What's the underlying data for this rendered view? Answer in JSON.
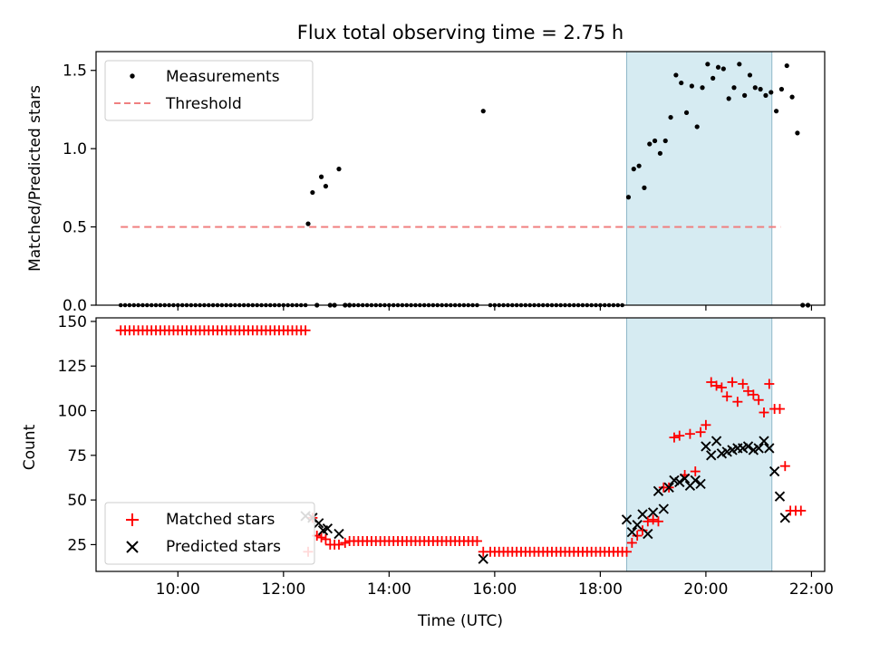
{
  "figure": {
    "title": "Flux total observing time = 2.75 h",
    "shared_xlabel": "Time (UTC)"
  },
  "colors": {
    "measurement": "#000000",
    "threshold": "#f08080",
    "matched": "#ff0000",
    "predicted": "#000000",
    "highlight": "#add8e6"
  },
  "chart_data": [
    {
      "type": "scatter",
      "title": "Flux total observing time = 2.75 h",
      "xlabel": "",
      "ylabel": "Matched/Predicted stars",
      "xlim": [
        "08:27",
        "22:15"
      ],
      "ylim": [
        0,
        1.62
      ],
      "yticks": [
        0.0,
        0.5,
        1.0,
        1.5
      ],
      "yticklabels": [
        "0.0",
        "0.5",
        "1.0",
        "1.5"
      ],
      "xticks": [
        "10:00",
        "12:00",
        "14:00",
        "16:00",
        "18:00",
        "20:00",
        "22:00"
      ],
      "shaded_span": [
        "18:30",
        "21:15"
      ],
      "legend": {
        "position": "upper-left",
        "entries": [
          "Measurements",
          "Threshold"
        ]
      },
      "threshold": {
        "name": "Threshold",
        "y": 0.5,
        "x": [
          "08:55",
          "21:25"
        ]
      },
      "series": [
        {
          "name": "Measurements",
          "marker": "dot",
          "zero_runs": [
            [
              "08:55",
              "12:25"
            ],
            [
              "13:20",
              "15:40"
            ],
            [
              "15:55",
              "18:25"
            ]
          ],
          "points": [
            [
              "12:28",
              0.52
            ],
            [
              "12:33",
              0.72
            ],
            [
              "12:38",
              0.0
            ],
            [
              "12:43",
              0.82
            ],
            [
              "12:48",
              0.76
            ],
            [
              "12:53",
              0.0
            ],
            [
              "12:58",
              0.0
            ],
            [
              "13:03",
              0.87
            ],
            [
              "13:10",
              0.0
            ],
            [
              "13:15",
              0.0
            ],
            [
              "15:47",
              1.24
            ],
            [
              "18:32",
              0.69
            ],
            [
              "18:38",
              0.87
            ],
            [
              "18:44",
              0.89
            ],
            [
              "18:50",
              0.75
            ],
            [
              "18:56",
              1.03
            ],
            [
              "19:02",
              1.05
            ],
            [
              "19:08",
              0.97
            ],
            [
              "19:14",
              1.05
            ],
            [
              "19:20",
              1.2
            ],
            [
              "19:26",
              1.47
            ],
            [
              "19:32",
              1.42
            ],
            [
              "19:38",
              1.23
            ],
            [
              "19:44",
              1.4
            ],
            [
              "19:50",
              1.14
            ],
            [
              "19:56",
              1.39
            ],
            [
              "20:02",
              1.54
            ],
            [
              "20:08",
              1.45
            ],
            [
              "20:14",
              1.52
            ],
            [
              "20:20",
              1.51
            ],
            [
              "20:26",
              1.32
            ],
            [
              "20:32",
              1.39
            ],
            [
              "20:38",
              1.54
            ],
            [
              "20:44",
              1.34
            ],
            [
              "20:50",
              1.47
            ],
            [
              "20:56",
              1.39
            ],
            [
              "21:02",
              1.38
            ],
            [
              "21:08",
              1.34
            ],
            [
              "21:14",
              1.36
            ],
            [
              "21:20",
              1.24
            ],
            [
              "21:26",
              1.38
            ],
            [
              "21:32",
              1.53
            ],
            [
              "21:38",
              1.33
            ],
            [
              "21:44",
              1.1
            ],
            [
              "21:50",
              0.0
            ],
            [
              "21:56",
              0.0
            ]
          ]
        }
      ]
    },
    {
      "type": "scatter",
      "title": "",
      "xlabel": "Time (UTC)",
      "ylabel": "Count",
      "xlim": [
        "08:27",
        "22:15"
      ],
      "ylim": [
        10,
        152
      ],
      "yticks": [
        25,
        50,
        75,
        100,
        125,
        150
      ],
      "xticks": [
        "10:00",
        "12:00",
        "14:00",
        "16:00",
        "18:00",
        "20:00",
        "22:00"
      ],
      "shaded_span": [
        "18:30",
        "21:15"
      ],
      "legend": {
        "position": "lower-left",
        "entries": [
          "Matched stars",
          "Predicted stars"
        ]
      },
      "series": [
        {
          "name": "Matched stars",
          "marker": "plus",
          "constant_runs": [
            {
              "from": "08:55",
              "to": "12:25",
              "value": 145
            },
            {
              "from": "13:25",
              "to": "15:40",
              "value": 27
            },
            {
              "from": "15:55",
              "to": "18:25",
              "value": 21
            }
          ],
          "points": [
            [
              "12:28",
              21
            ],
            [
              "12:33",
              40
            ],
            [
              "12:38",
              30
            ],
            [
              "12:43",
              29
            ],
            [
              "12:48",
              28
            ],
            [
              "12:53",
              25
            ],
            [
              "12:58",
              25
            ],
            [
              "13:03",
              25
            ],
            [
              "13:10",
              26
            ],
            [
              "13:15",
              27
            ],
            [
              "13:20",
              27
            ],
            [
              "15:47",
              21
            ],
            [
              "18:30",
              21
            ],
            [
              "18:36",
              26
            ],
            [
              "18:42",
              30
            ],
            [
              "18:48",
              33
            ],
            [
              "18:54",
              38
            ],
            [
              "19:00",
              39
            ],
            [
              "19:06",
              38
            ],
            [
              "19:12",
              57
            ],
            [
              "19:18",
              57
            ],
            [
              "19:24",
              85
            ],
            [
              "19:30",
              86
            ],
            [
              "19:36",
              64
            ],
            [
              "19:42",
              87
            ],
            [
              "19:48",
              66
            ],
            [
              "19:54",
              88
            ],
            [
              "20:00",
              92
            ],
            [
              "20:06",
              116
            ],
            [
              "20:12",
              114
            ],
            [
              "20:18",
              113
            ],
            [
              "20:24",
              108
            ],
            [
              "20:30",
              116
            ],
            [
              "20:36",
              105
            ],
            [
              "20:42",
              115
            ],
            [
              "20:48",
              111
            ],
            [
              "20:54",
              109
            ],
            [
              "21:00",
              106
            ],
            [
              "21:06",
              99
            ],
            [
              "21:12",
              115
            ],
            [
              "21:18",
              101
            ],
            [
              "21:24",
              101
            ],
            [
              "21:30",
              69
            ],
            [
              "21:36",
              44
            ],
            [
              "21:42",
              44
            ],
            [
              "21:48",
              44
            ]
          ]
        },
        {
          "name": "Predicted stars",
          "marker": "x",
          "points": [
            [
              "12:25",
              41
            ],
            [
              "12:33",
              40
            ],
            [
              "12:40",
              37
            ],
            [
              "12:45",
              33
            ],
            [
              "12:50",
              34
            ],
            [
              "13:03",
              31
            ],
            [
              "15:47",
              17
            ],
            [
              "18:30",
              39
            ],
            [
              "18:36",
              32
            ],
            [
              "18:42",
              36
            ],
            [
              "18:48",
              42
            ],
            [
              "18:54",
              31
            ],
            [
              "19:00",
              43
            ],
            [
              "19:06",
              55
            ],
            [
              "19:12",
              45
            ],
            [
              "19:18",
              57
            ],
            [
              "19:24",
              61
            ],
            [
              "19:30",
              60
            ],
            [
              "19:36",
              62
            ],
            [
              "19:42",
              58
            ],
            [
              "19:48",
              61
            ],
            [
              "19:54",
              59
            ],
            [
              "20:00",
              80
            ],
            [
              "20:06",
              75
            ],
            [
              "20:12",
              83
            ],
            [
              "20:18",
              76
            ],
            [
              "20:24",
              77
            ],
            [
              "20:30",
              78
            ],
            [
              "20:36",
              79
            ],
            [
              "20:42",
              79
            ],
            [
              "20:48",
              80
            ],
            [
              "20:54",
              78
            ],
            [
              "21:00",
              79
            ],
            [
              "21:06",
              83
            ],
            [
              "21:12",
              79
            ],
            [
              "21:18",
              66
            ],
            [
              "21:24",
              52
            ],
            [
              "21:30",
              40
            ]
          ]
        }
      ]
    }
  ]
}
